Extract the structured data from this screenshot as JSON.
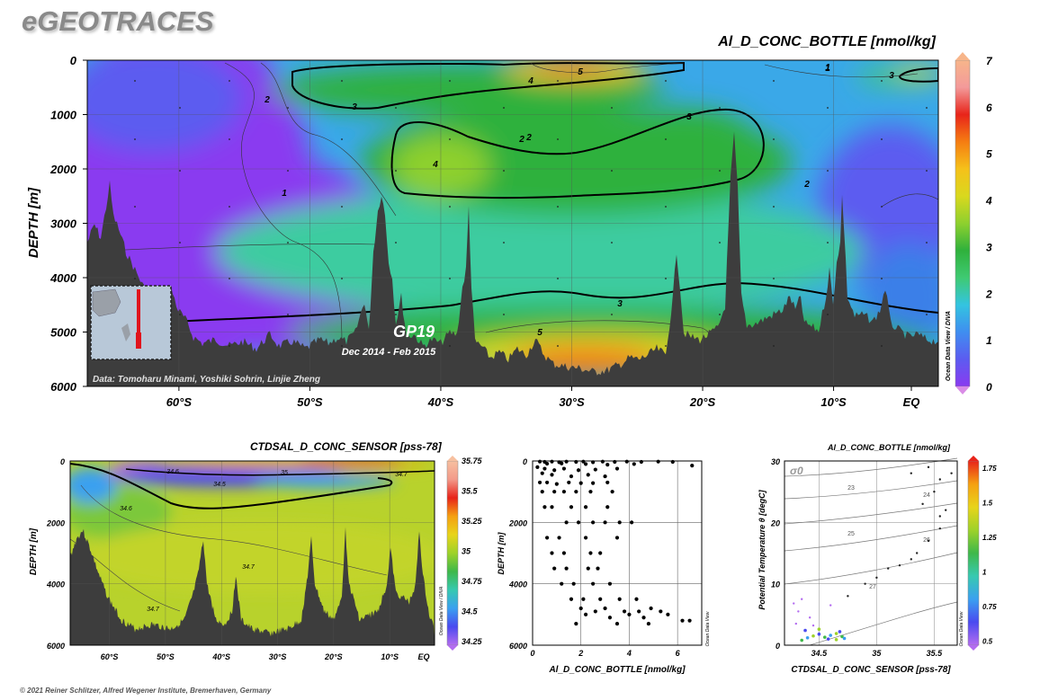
{
  "brand": "eGEOTRACES",
  "footer": "© 2021 Reiner Schlitzer, Alfred Wegener Institute, Bremerhaven, Germany",
  "colors": {
    "bathymetry": "#3d3d3d",
    "scale": [
      "#d98ce6",
      "#8a3af0",
      "#5c5cf0",
      "#3f8ef0",
      "#33c4e0",
      "#3fca72",
      "#2fb13c",
      "#8ed02e",
      "#d9d81e",
      "#f5c11a",
      "#f57d12",
      "#e8241a",
      "#f39a9a",
      "#f7b58a"
    ]
  },
  "main": {
    "title": "Al_D_CONC_BOTTLE [nmol/kg]",
    "ylabel": "DEPTH [m]",
    "y_ticks": [
      "0",
      "1000",
      "2000",
      "3000",
      "4000",
      "5000",
      "6000"
    ],
    "x_ticks": [
      "60°S",
      "50°S",
      "40°S",
      "30°S",
      "20°S",
      "10°S",
      "EQ"
    ],
    "colorbar_ticks": [
      "0",
      "1",
      "2",
      "3",
      "4",
      "5",
      "6",
      "7"
    ],
    "section_label": "GP19",
    "section_dates": "Dec 2014 - Feb 2015",
    "data_credit": "Data: Tomoharu Minami, Yoshiki Sohrin, Linjie Zheng",
    "odv_label": "Ocean Data View / DIVA",
    "contour_labels": [
      "1",
      "2",
      "3",
      "4",
      "5",
      "3",
      "2",
      "3",
      "4",
      "2",
      "1",
      "3",
      "2",
      "3",
      "5",
      "1"
    ]
  },
  "salinity": {
    "title": "CTDSAL_D_CONC_SENSOR [pss-78]",
    "ylabel": "DEPTH [m]",
    "y_ticks": [
      "0",
      "2000",
      "4000",
      "6000"
    ],
    "x_ticks": [
      "60°S",
      "50°S",
      "40°S",
      "30°S",
      "20°S",
      "10°S",
      "EQ"
    ],
    "colorbar_ticks": [
      "35.75",
      "35.5",
      "35.25",
      "35",
      "34.75",
      "34.5",
      "34.25"
    ],
    "contour_labels": [
      "34.6",
      "35",
      "34.7",
      "34.6",
      "34.5",
      "34.7",
      "34.7"
    ],
    "odv_label": "Ocean Data View / DIVA"
  },
  "scatter": {
    "xlabel": "Al_D_CONC_BOTTLE [nmol/kg]",
    "ylabel": "DEPTH [m]",
    "x_ticks": [
      "0",
      "2",
      "4",
      "6"
    ],
    "y_ticks": [
      "0",
      "2000",
      "4000",
      "6000"
    ],
    "odv_label": "Ocean Data View"
  },
  "ts": {
    "title": "Al_D_CONC_BOTTLE [nmol/kg]",
    "xlabel": "CTDSAL_D_CONC_SENSOR [pss-78]",
    "ylabel": "Potential Temperature θ [degC]",
    "x_ticks": [
      "34.5",
      "35",
      "35.5"
    ],
    "y_ticks": [
      "0",
      "10",
      "20",
      "30"
    ],
    "sigma_label": "σ0",
    "isopycnal_labels": [
      "23",
      "24",
      "25",
      "26",
      "27"
    ],
    "colorbar_ticks": [
      "1.75",
      "1.5",
      "1.25",
      "1",
      "0.75",
      "0.5"
    ],
    "odv_label": "Ocean Data View"
  },
  "chart_data": [
    {
      "type": "heatmap",
      "title": "Al_D_CONC_BOTTLE [nmol/kg]",
      "xlabel": "",
      "ylabel": "DEPTH [m]",
      "xlim": [
        -67,
        -2
      ],
      "ylim": [
        6000,
        0
      ],
      "zlim": [
        0,
        7
      ],
      "x_unit": "latitude (negative = °S)",
      "contour_levels": [
        1,
        2,
        3,
        4,
        5
      ],
      "approx_field": [
        {
          "lat": -62,
          "depth_range": [
            0,
            5000
          ],
          "value": 0.8
        },
        {
          "lat": -50,
          "depth_range": [
            0,
            4500
          ],
          "value": 1.0
        },
        {
          "lat": -40,
          "depth_range": [
            500,
            2500
          ],
          "value": 3.5
        },
        {
          "lat": -28,
          "depth_range": [
            0,
            200
          ],
          "value": 5.5
        },
        {
          "lat": -25,
          "depth_range": [
            5000,
            5800
          ],
          "value": 6.0
        },
        {
          "lat": -15,
          "depth_range": [
            1000,
            2000
          ],
          "value": 3.2
        },
        {
          "lat": -5,
          "depth_range": [
            2500,
            3500
          ],
          "value": 1.6
        }
      ]
    },
    {
      "type": "heatmap",
      "title": "CTDSAL_D_CONC_SENSOR [pss-78]",
      "xlabel": "",
      "ylabel": "DEPTH [m]",
      "xlim": [
        -67,
        -2
      ],
      "ylim": [
        6000,
        0
      ],
      "zlim": [
        34.25,
        35.75
      ],
      "contour_levels": [
        34.5,
        34.6,
        34.7,
        35
      ],
      "approx_field": [
        {
          "lat": -62,
          "depth_range": [
            0,
            500
          ],
          "value": 34.3
        },
        {
          "lat": -30,
          "depth_range": [
            0,
            100
          ],
          "value": 35.6
        },
        {
          "lat": -40,
          "depth_range": [
            600,
            1000
          ],
          "value": 34.4
        },
        {
          "lat": -30,
          "depth_range": [
            2000,
            5000
          ],
          "value": 34.7
        }
      ]
    },
    {
      "type": "scatter",
      "xlabel": "Al_D_CONC_BOTTLE [nmol/kg]",
      "ylabel": "DEPTH [m]",
      "xlim": [
        0,
        7
      ],
      "ylim": [
        6000,
        0
      ],
      "points": [
        [
          0.3,
          20
        ],
        [
          0.5,
          30
        ],
        [
          0.8,
          20
        ],
        [
          1.1,
          40
        ],
        [
          1.4,
          20
        ],
        [
          1.8,
          30
        ],
        [
          2.1,
          20
        ],
        [
          2.5,
          40
        ],
        [
          2.9,
          20
        ],
        [
          3.4,
          30
        ],
        [
          3.9,
          20
        ],
        [
          4.5,
          30
        ],
        [
          5.2,
          20
        ],
        [
          5.8,
          30
        ],
        [
          6.6,
          150
        ],
        [
          4.2,
          100
        ],
        [
          3.1,
          120
        ],
        [
          1.2,
          80
        ],
        [
          0.6,
          90
        ],
        [
          2.2,
          100
        ],
        [
          0.2,
          200
        ],
        [
          0.5,
          250
        ],
        [
          0.9,
          300
        ],
        [
          1.3,
          250
        ],
        [
          1.9,
          300
        ],
        [
          2.6,
          280
        ],
        [
          3.5,
          250
        ],
        [
          0.4,
          400
        ],
        [
          0.8,
          450
        ],
        [
          1.6,
          500
        ],
        [
          2.3,
          450
        ],
        [
          3.0,
          500
        ],
        [
          0.3,
          700
        ],
        [
          0.6,
          700
        ],
        [
          1.0,
          750
        ],
        [
          1.5,
          700
        ],
        [
          2.0,
          720
        ],
        [
          2.5,
          720
        ],
        [
          3.1,
          700
        ],
        [
          0.4,
          1000
        ],
        [
          0.9,
          1000
        ],
        [
          1.3,
          1000
        ],
        [
          1.8,
          1000
        ],
        [
          2.4,
          1000
        ],
        [
          3.3,
          1000
        ],
        [
          0.5,
          1500
        ],
        [
          0.8,
          1500
        ],
        [
          1.6,
          1500
        ],
        [
          2.2,
          1500
        ],
        [
          3.1,
          1500
        ],
        [
          1.4,
          2000
        ],
        [
          1.9,
          2000
        ],
        [
          2.5,
          2000
        ],
        [
          3.0,
          2000
        ],
        [
          3.6,
          2000
        ],
        [
          4.1,
          2000
        ],
        [
          0.6,
          2500
        ],
        [
          1.1,
          2500
        ],
        [
          2.2,
          2500
        ],
        [
          3.5,
          2500
        ],
        [
          0.8,
          3000
        ],
        [
          1.3,
          3000
        ],
        [
          2.4,
          3000
        ],
        [
          2.8,
          3000
        ],
        [
          0.9,
          3500
        ],
        [
          1.4,
          3500
        ],
        [
          2.3,
          3500
        ],
        [
          2.7,
          3500
        ],
        [
          1.2,
          4000
        ],
        [
          1.7,
          4000
        ],
        [
          2.5,
          4000
        ],
        [
          3.2,
          4000
        ],
        [
          1.6,
          4500
        ],
        [
          2.1,
          4500
        ],
        [
          2.8,
          4500
        ],
        [
          3.6,
          4500
        ],
        [
          4.3,
          4500
        ],
        [
          2.0,
          4800
        ],
        [
          2.6,
          4900
        ],
        [
          3.0,
          4800
        ],
        [
          3.8,
          4900
        ],
        [
          4.4,
          4900
        ],
        [
          4.9,
          4800
        ],
        [
          5.3,
          4900
        ],
        [
          2.2,
          5000
        ],
        [
          3.2,
          5100
        ],
        [
          4.0,
          5000
        ],
        [
          4.6,
          5100
        ],
        [
          5.6,
          5000
        ],
        [
          6.2,
          5200
        ],
        [
          6.5,
          5200
        ],
        [
          3.5,
          5300
        ],
        [
          1.8,
          5300
        ],
        [
          4.8,
          5300
        ]
      ]
    },
    {
      "type": "scatter",
      "title": "Al_D_CONC_BOTTLE [nmol/kg]",
      "xlabel": "CTDSAL_D_CONC_SENSOR [pss-78]",
      "ylabel": "Potential Temperature θ [degC]",
      "xlim": [
        34.2,
        35.7
      ],
      "ylim": [
        0,
        30
      ],
      "color_scale": [
        0.5,
        1.75
      ],
      "isopycnals": [
        23,
        24,
        25,
        26,
        27
      ],
      "points": [
        [
          34.35,
          0.8
        ],
        [
          34.4,
          1.2
        ],
        [
          34.45,
          1.5
        ],
        [
          34.5,
          1.8
        ],
        [
          34.55,
          1.3
        ],
        [
          34.6,
          1.6
        ],
        [
          34.65,
          1.9
        ],
        [
          34.68,
          2.2
        ],
        [
          34.7,
          1.4
        ],
        [
          34.72,
          1.1
        ],
        [
          34.65,
          0.9
        ],
        [
          34.58,
          1.0
        ],
        [
          34.3,
          3.5
        ],
        [
          34.32,
          5.5
        ],
        [
          34.28,
          6.8
        ],
        [
          34.35,
          7.5
        ],
        [
          34.42,
          4.5
        ],
        [
          34.45,
          3.2
        ],
        [
          34.5,
          2.6
        ],
        [
          34.38,
          2.4
        ],
        [
          34.6,
          6.5
        ],
        [
          34.75,
          8
        ],
        [
          34.9,
          10
        ],
        [
          35.0,
          11
        ],
        [
          35.1,
          12.5
        ],
        [
          35.2,
          13
        ],
        [
          35.3,
          14
        ],
        [
          35.35,
          15
        ],
        [
          35.45,
          17
        ],
        [
          35.55,
          19
        ],
        [
          35.6,
          22
        ],
        [
          35.4,
          23
        ],
        [
          35.5,
          25
        ],
        [
          35.55,
          27
        ],
        [
          35.65,
          28
        ],
        [
          35.45,
          29
        ],
        [
          35.3,
          28
        ],
        [
          35.55,
          21
        ]
      ]
    }
  ]
}
